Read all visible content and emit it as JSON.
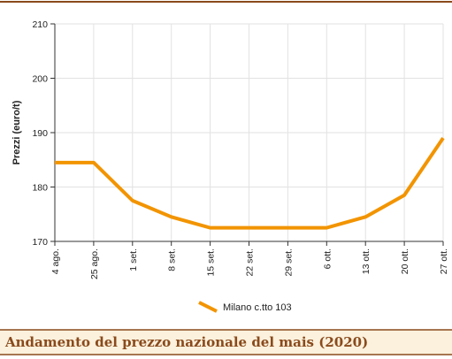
{
  "chart_data": {
    "type": "line",
    "title": "Andamento del prezzo nazionale del mais (2020)",
    "y_label": "Prezzi (euro/t)",
    "categories": [
      "4 ago.",
      "25 ago.",
      "1 set.",
      "8 set.",
      "15 set.",
      "22 set.",
      "29 set.",
      "6 ott.",
      "13 ott.",
      "20 ott.",
      "27 ott."
    ],
    "series": [
      {
        "name": "Milano c.tto 103",
        "color": "#f29400",
        "values": [
          184.5,
          184.5,
          177.5,
          174.5,
          172.5,
          172.5,
          172.5,
          172.5,
          174.5,
          178.5,
          189
        ]
      }
    ],
    "ylim": [
      170,
      210
    ],
    "yticks": [
      170,
      180,
      190,
      200,
      210
    ],
    "grid": true
  }
}
